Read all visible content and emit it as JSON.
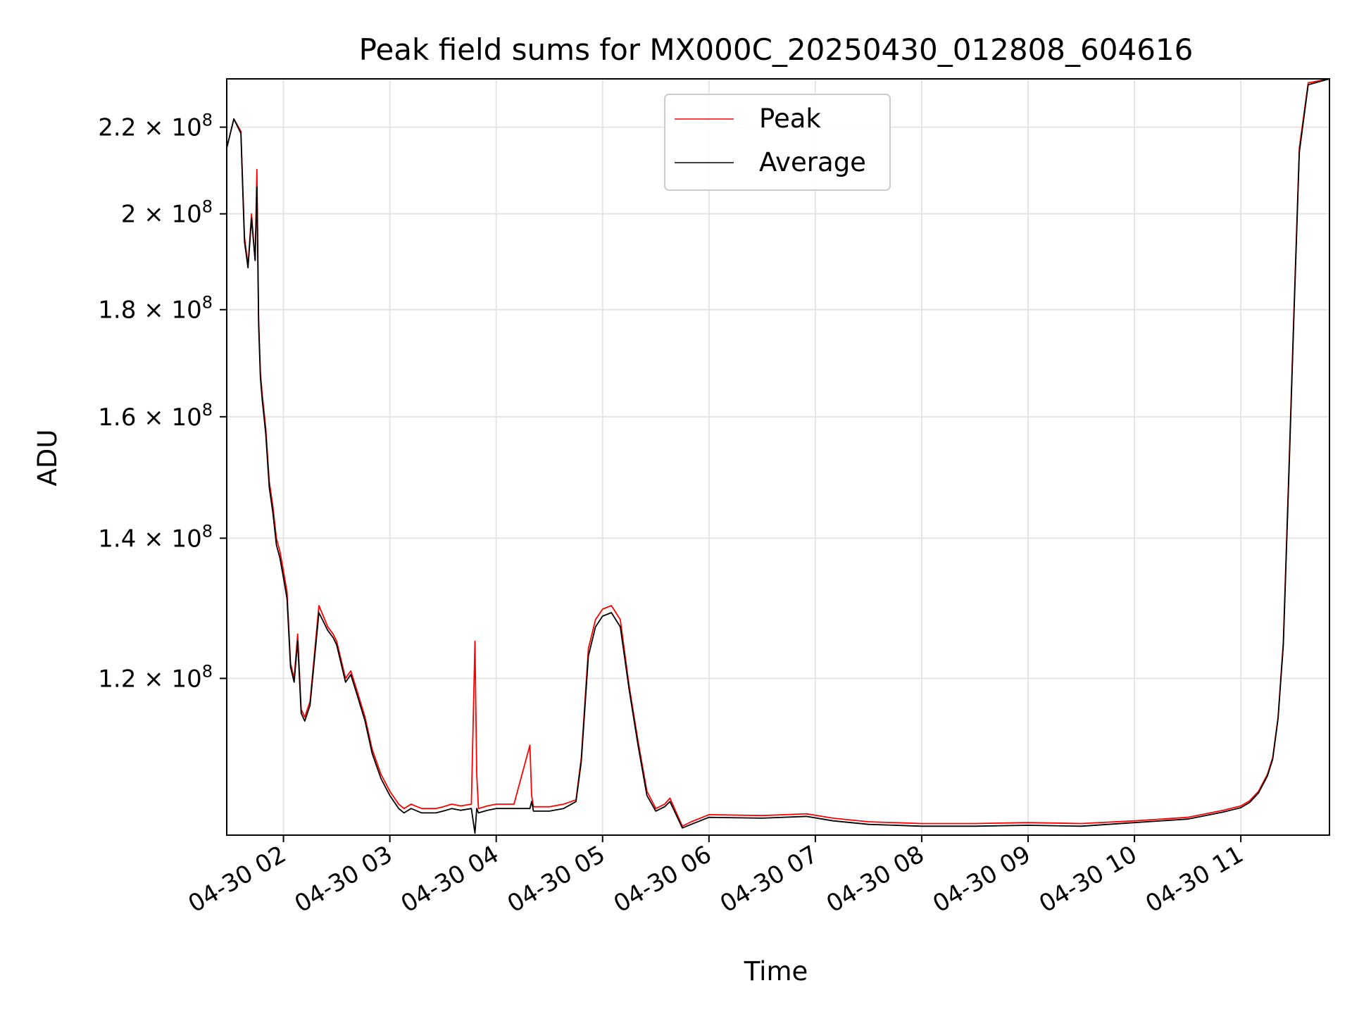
{
  "chart_data": {
    "type": "line",
    "title": "Peak field sums for MX000C_20250430_012808_604616",
    "xlabel": "Time",
    "ylabel": "ADU",
    "y_scale": "log",
    "x_range": [
      "2025-04-30 01:28",
      "2025-04-30 11:50"
    ],
    "y_range": [
      101000000,
      232000000
    ],
    "x_ticks": [
      "04-30 02",
      "04-30 03",
      "04-30 04",
      "04-30 05",
      "04-30 06",
      "04-30 07",
      "04-30 08",
      "04-30 09",
      "04-30 10",
      "04-30 11"
    ],
    "y_ticks": [
      {
        "value": 120000000,
        "mantissa": "1.2"
      },
      {
        "value": 140000000,
        "mantissa": "1.4"
      },
      {
        "value": 160000000,
        "mantissa": "1.6"
      },
      {
        "value": 180000000,
        "mantissa": "1.8"
      },
      {
        "value": 200000000,
        "mantissa": "2"
      },
      {
        "value": 220000000,
        "mantissa": "2.2"
      }
    ],
    "y_tick_base": "10",
    "y_tick_exponent": "8",
    "grid": true,
    "legend_position": "upper center",
    "series": [
      {
        "name": "Peak",
        "color": "#ff0000",
        "x": [
          "2025-04-30 01:28",
          "2025-04-30 01:32",
          "2025-04-30 01:36",
          "2025-04-30 01:38",
          "2025-04-30 01:40",
          "2025-04-30 01:42",
          "2025-04-30 01:44",
          "2025-04-30 01:45",
          "2025-04-30 01:46",
          "2025-04-30 01:47",
          "2025-04-30 01:48",
          "2025-04-30 01:49",
          "2025-04-30 01:50",
          "2025-04-30 01:52",
          "2025-04-30 01:54",
          "2025-04-30 01:56",
          "2025-04-30 01:58",
          "2025-04-30 02:00",
          "2025-04-30 02:02",
          "2025-04-30 02:04",
          "2025-04-30 02:06",
          "2025-04-30 02:08",
          "2025-04-30 02:10",
          "2025-04-30 02:12",
          "2025-04-30 02:15",
          "2025-04-30 02:20",
          "2025-04-30 02:25",
          "2025-04-30 02:28",
          "2025-04-30 02:30",
          "2025-04-30 02:32",
          "2025-04-30 02:35",
          "2025-04-30 02:38",
          "2025-04-30 02:42",
          "2025-04-30 02:46",
          "2025-04-30 02:50",
          "2025-04-30 02:55",
          "2025-04-30 03:00",
          "2025-04-30 03:05",
          "2025-04-30 03:08",
          "2025-04-30 03:12",
          "2025-04-30 03:18",
          "2025-04-30 03:22",
          "2025-04-30 03:26",
          "2025-04-30 03:30",
          "2025-04-30 03:35",
          "2025-04-30 03:40",
          "2025-04-30 03:46",
          "2025-04-30 03:48",
          "2025-04-30 03:49",
          "2025-04-30 03:50",
          "2025-04-30 03:55",
          "2025-04-30 04:00",
          "2025-04-30 04:10",
          "2025-04-30 04:19",
          "2025-04-30 04:20",
          "2025-04-30 04:21",
          "2025-04-30 04:25",
          "2025-04-30 04:30",
          "2025-04-30 04:38",
          "2025-04-30 04:45",
          "2025-04-30 04:48",
          "2025-04-30 04:52",
          "2025-04-30 04:56",
          "2025-04-30 05:00",
          "2025-04-30 05:05",
          "2025-04-30 05:10",
          "2025-04-30 05:15",
          "2025-04-30 05:20",
          "2025-04-30 05:25",
          "2025-04-30 05:30",
          "2025-04-30 05:35",
          "2025-04-30 05:38",
          "2025-04-30 05:45",
          "2025-04-30 05:50",
          "2025-04-30 06:00",
          "2025-04-30 06:30",
          "2025-04-30 06:55",
          "2025-04-30 07:10",
          "2025-04-30 07:30",
          "2025-04-30 08:00",
          "2025-04-30 08:30",
          "2025-04-30 09:00",
          "2025-04-30 09:30",
          "2025-04-30 10:00",
          "2025-04-30 10:30",
          "2025-04-30 10:50",
          "2025-04-30 11:00",
          "2025-04-30 11:05",
          "2025-04-30 11:10",
          "2025-04-30 11:15",
          "2025-04-30 11:18",
          "2025-04-30 11:21",
          "2025-04-30 11:24",
          "2025-04-30 11:27",
          "2025-04-30 11:30",
          "2025-04-30 11:33",
          "2025-04-30 11:38",
          "2025-04-30 11:50"
        ],
        "y": [
          215000000,
          222000000,
          219000000,
          195000000,
          189000000,
          200000000,
          190000000,
          210000000,
          178000000,
          168000000,
          164000000,
          161000000,
          158000000,
          149000000,
          145000000,
          140000000,
          138000000,
          135000000,
          132000000,
          122000000,
          120000000,
          126000000,
          116000000,
          115000000,
          117000000,
          130000000,
          127000000,
          126000000,
          125000000,
          123000000,
          120000000,
          121000000,
          118000000,
          115000000,
          111000000,
          108000000,
          106000000,
          104500000,
          104000000,
          104500000,
          104000000,
          104000000,
          104000000,
          104200000,
          104500000,
          104300000,
          104500000,
          125000000,
          108000000,
          104000000,
          104300000,
          104500000,
          104500000,
          111500000,
          105500000,
          104200000,
          104200000,
          104200000,
          104500000,
          105000000,
          110000000,
          124000000,
          128000000,
          129500000,
          130000000,
          128000000,
          119000000,
          112000000,
          106000000,
          104000000,
          104500000,
          105200000,
          102000000,
          102500000,
          103300000,
          103200000,
          103400000,
          102900000,
          102500000,
          102300000,
          102300000,
          102400000,
          102300000,
          102600000,
          103000000,
          103800000,
          104300000,
          104900000,
          106000000,
          108000000,
          110000000,
          115000000,
          125000000,
          150000000,
          180000000,
          215000000,
          231000000,
          232000000
        ]
      },
      {
        "name": "Average",
        "color": "#000000",
        "x": [
          "2025-04-30 01:28",
          "2025-04-30 01:32",
          "2025-04-30 01:36",
          "2025-04-30 01:38",
          "2025-04-30 01:40",
          "2025-04-30 01:42",
          "2025-04-30 01:44",
          "2025-04-30 01:45",
          "2025-04-30 01:46",
          "2025-04-30 01:47",
          "2025-04-30 01:48",
          "2025-04-30 01:49",
          "2025-04-30 01:50",
          "2025-04-30 01:52",
          "2025-04-30 01:54",
          "2025-04-30 01:56",
          "2025-04-30 01:58",
          "2025-04-30 02:00",
          "2025-04-30 02:02",
          "2025-04-30 02:04",
          "2025-04-30 02:06",
          "2025-04-30 02:08",
          "2025-04-30 02:10",
          "2025-04-30 02:12",
          "2025-04-30 02:15",
          "2025-04-30 02:20",
          "2025-04-30 02:25",
          "2025-04-30 02:28",
          "2025-04-30 02:30",
          "2025-04-30 02:32",
          "2025-04-30 02:35",
          "2025-04-30 02:38",
          "2025-04-30 02:42",
          "2025-04-30 02:46",
          "2025-04-30 02:50",
          "2025-04-30 02:55",
          "2025-04-30 03:00",
          "2025-04-30 03:05",
          "2025-04-30 03:08",
          "2025-04-30 03:12",
          "2025-04-30 03:18",
          "2025-04-30 03:22",
          "2025-04-30 03:26",
          "2025-04-30 03:30",
          "2025-04-30 03:35",
          "2025-04-30 03:40",
          "2025-04-30 03:46",
          "2025-04-30 03:48",
          "2025-04-30 03:49",
          "2025-04-30 03:50",
          "2025-04-30 03:55",
          "2025-04-30 04:00",
          "2025-04-30 04:10",
          "2025-04-30 04:19",
          "2025-04-30 04:20",
          "2025-04-30 04:21",
          "2025-04-30 04:25",
          "2025-04-30 04:30",
          "2025-04-30 04:38",
          "2025-04-30 04:45",
          "2025-04-30 04:48",
          "2025-04-30 04:52",
          "2025-04-30 04:56",
          "2025-04-30 05:00",
          "2025-04-30 05:05",
          "2025-04-30 05:10",
          "2025-04-30 05:15",
          "2025-04-30 05:20",
          "2025-04-30 05:25",
          "2025-04-30 05:30",
          "2025-04-30 05:35",
          "2025-04-30 05:38",
          "2025-04-30 05:45",
          "2025-04-30 05:50",
          "2025-04-30 06:00",
          "2025-04-30 06:30",
          "2025-04-30 06:55",
          "2025-04-30 07:10",
          "2025-04-30 07:30",
          "2025-04-30 08:00",
          "2025-04-30 08:30",
          "2025-04-30 09:00",
          "2025-04-30 09:30",
          "2025-04-30 10:00",
          "2025-04-30 10:30",
          "2025-04-30 10:50",
          "2025-04-30 11:00",
          "2025-04-30 11:05",
          "2025-04-30 11:10",
          "2025-04-30 11:15",
          "2025-04-30 11:18",
          "2025-04-30 11:21",
          "2025-04-30 11:24",
          "2025-04-30 11:27",
          "2025-04-30 11:30",
          "2025-04-30 11:33",
          "2025-04-30 11:38",
          "2025-04-30 11:50"
        ],
        "y": [
          215000000,
          222000000,
          218500000,
          194000000,
          188500000,
          199000000,
          190000000,
          206000000,
          177000000,
          167000000,
          163000000,
          160000000,
          157000000,
          148000000,
          144000000,
          139000000,
          137000000,
          134000000,
          131000000,
          121500000,
          119500000,
          125000000,
          115500000,
          114500000,
          116500000,
          129000000,
          126500000,
          125500000,
          124500000,
          122500000,
          119500000,
          120500000,
          117500000,
          114500000,
          110500000,
          107500000,
          105500000,
          104000000,
          103500000,
          104000000,
          103500000,
          103500000,
          103500000,
          103700000,
          104000000,
          103800000,
          104000000,
          101200000,
          104000000,
          103500000,
          103800000,
          104000000,
          104000000,
          104000000,
          104800000,
          103700000,
          103700000,
          103700000,
          104000000,
          104800000,
          109500000,
          123000000,
          127000000,
          128500000,
          129000000,
          127000000,
          118500000,
          111500000,
          105500000,
          103700000,
          104200000,
          104800000,
          101800000,
          102200000,
          103000000,
          102900000,
          103100000,
          102600000,
          102200000,
          102000000,
          102000000,
          102100000,
          102000000,
          102400000,
          102800000,
          103600000,
          104100000,
          104700000,
          105800000,
          107800000,
          109800000,
          114800000,
          124500000,
          149000000,
          179000000,
          214000000,
          230500000,
          232000000
        ]
      }
    ]
  }
}
